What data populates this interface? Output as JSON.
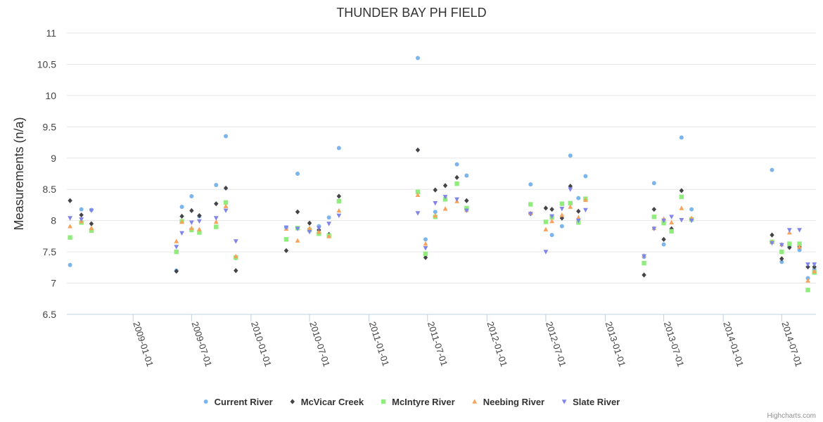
{
  "chart_data": {
    "type": "scatter",
    "title": "THUNDER BAY PH FIELD",
    "xlabel": "",
    "ylabel": "Measurements (n/a)",
    "ylim": [
      6.5,
      11
    ],
    "yticks": [
      "6.5",
      "7",
      "7.5",
      "8",
      "8.5",
      "9",
      "9.5",
      "10",
      "10.5",
      "11"
    ],
    "xlim": [
      "2008-06-10",
      "2014-10-15"
    ],
    "xticks": [
      "2009-01-01",
      "2009-07-01",
      "2010-01-01",
      "2010-07-01",
      "2011-01-01",
      "2011-07-01",
      "2012-01-01",
      "2012-07-01",
      "2013-01-01",
      "2013-07-01",
      "2014-01-01",
      "2014-07-01"
    ],
    "series": [
      {
        "name": "Current River",
        "color": "#7cb5ec",
        "marker": "circle",
        "points": [
          [
            "2008-06-20",
            7.29
          ],
          [
            "2008-07-25",
            8.18
          ],
          [
            "2008-08-25",
            8.17
          ],
          [
            "2009-05-15",
            7.2
          ],
          [
            "2009-06-01",
            8.22
          ],
          [
            "2009-07-01",
            8.39
          ],
          [
            "2009-07-25",
            8.07
          ],
          [
            "2009-09-15",
            8.57
          ],
          [
            "2009-10-15",
            9.35
          ],
          [
            "2009-11-15",
            7.4
          ],
          [
            "2010-04-20",
            7.89
          ],
          [
            "2010-05-25",
            8.75
          ],
          [
            "2010-07-01",
            7.85
          ],
          [
            "2010-07-30",
            7.91
          ],
          [
            "2010-08-30",
            8.05
          ],
          [
            "2010-09-30",
            9.16
          ],
          [
            "2011-06-01",
            10.6
          ],
          [
            "2011-06-25",
            7.7
          ],
          [
            "2011-07-25",
            8.14
          ],
          [
            "2011-08-25",
            8.34
          ],
          [
            "2011-09-30",
            8.9
          ],
          [
            "2011-10-30",
            8.72
          ],
          [
            "2012-05-15",
            8.58
          ],
          [
            "2012-07-01",
            7.98
          ],
          [
            "2012-07-20",
            7.77
          ],
          [
            "2012-08-20",
            7.91
          ],
          [
            "2012-09-15",
            9.04
          ],
          [
            "2012-10-10",
            8.36
          ],
          [
            "2012-11-01",
            8.71
          ],
          [
            "2013-05-01",
            7.42
          ],
          [
            "2013-06-01",
            8.6
          ],
          [
            "2013-07-01",
            7.62
          ],
          [
            "2013-07-25",
            7.84
          ],
          [
            "2013-08-25",
            9.33
          ],
          [
            "2013-09-25",
            8.18
          ],
          [
            "2014-06-01",
            8.81
          ],
          [
            "2014-07-01",
            7.34
          ],
          [
            "2014-07-25",
            7.58
          ],
          [
            "2014-08-25",
            7.53
          ],
          [
            "2014-09-20",
            7.08
          ],
          [
            "2014-10-10",
            7.22
          ]
        ]
      },
      {
        "name": "McVicar Creek",
        "color": "#434348",
        "marker": "diamond",
        "points": [
          [
            "2008-06-20",
            8.32
          ],
          [
            "2008-07-25",
            8.09
          ],
          [
            "2008-08-25",
            7.95
          ],
          [
            "2009-05-15",
            7.19
          ],
          [
            "2009-06-01",
            8.07
          ],
          [
            "2009-07-01",
            8.16
          ],
          [
            "2009-07-25",
            8.08
          ],
          [
            "2009-09-15",
            8.27
          ],
          [
            "2009-10-15",
            8.52
          ],
          [
            "2009-11-15",
            7.2
          ],
          [
            "2010-04-20",
            7.52
          ],
          [
            "2010-05-25",
            8.14
          ],
          [
            "2010-07-01",
            7.96
          ],
          [
            "2010-07-30",
            7.85
          ],
          [
            "2010-08-30",
            7.78
          ],
          [
            "2010-09-30",
            8.39
          ],
          [
            "2011-06-01",
            9.13
          ],
          [
            "2011-06-25",
            7.41
          ],
          [
            "2011-07-25",
            8.49
          ],
          [
            "2011-08-25",
            8.56
          ],
          [
            "2011-09-30",
            8.69
          ],
          [
            "2011-10-30",
            8.32
          ],
          [
            "2012-05-15",
            8.11
          ],
          [
            "2012-07-01",
            8.2
          ],
          [
            "2012-07-20",
            8.18
          ],
          [
            "2012-08-20",
            8.04
          ],
          [
            "2012-09-15",
            8.55
          ],
          [
            "2012-10-10",
            8.15
          ],
          [
            "2012-11-01",
            8.34
          ],
          [
            "2013-05-01",
            7.13
          ],
          [
            "2013-06-01",
            8.18
          ],
          [
            "2013-07-01",
            7.7
          ],
          [
            "2013-07-25",
            7.87
          ],
          [
            "2013-08-25",
            8.48
          ],
          [
            "2013-09-25",
            8.02
          ],
          [
            "2014-06-01",
            7.77
          ],
          [
            "2014-07-01",
            7.39
          ],
          [
            "2014-07-25",
            7.57
          ],
          [
            "2014-08-25",
            7.58
          ],
          [
            "2014-09-20",
            7.26
          ],
          [
            "2014-10-10",
            7.26
          ]
        ]
      },
      {
        "name": "McIntyre River",
        "color": "#90ed7d",
        "marker": "square",
        "points": [
          [
            "2008-06-20",
            7.73
          ],
          [
            "2008-07-25",
            7.97
          ],
          [
            "2008-08-25",
            7.84
          ],
          [
            "2009-05-15",
            7.5
          ],
          [
            "2009-06-01",
            7.99
          ],
          [
            "2009-07-01",
            7.85
          ],
          [
            "2009-07-25",
            7.81
          ],
          [
            "2009-09-15",
            7.9
          ],
          [
            "2009-10-15",
            8.29
          ],
          [
            "2009-11-15",
            7.41
          ],
          [
            "2010-04-20",
            7.7
          ],
          [
            "2010-05-25",
            7.88
          ],
          [
            "2010-07-01",
            7.85
          ],
          [
            "2010-07-30",
            7.79
          ],
          [
            "2010-08-30",
            7.76
          ],
          [
            "2010-09-30",
            8.31
          ],
          [
            "2011-06-01",
            8.46
          ],
          [
            "2011-06-25",
            7.47
          ],
          [
            "2011-07-25",
            8.06
          ],
          [
            "2011-08-25",
            8.34
          ],
          [
            "2011-09-30",
            8.59
          ],
          [
            "2011-10-30",
            8.2
          ],
          [
            "2012-05-15",
            8.26
          ],
          [
            "2012-07-01",
            7.98
          ],
          [
            "2012-07-20",
            8.05
          ],
          [
            "2012-08-20",
            8.27
          ],
          [
            "2012-09-15",
            8.28
          ],
          [
            "2012-10-10",
            7.97
          ],
          [
            "2012-11-01",
            8.35
          ],
          [
            "2013-05-01",
            7.32
          ],
          [
            "2013-06-01",
            8.06
          ],
          [
            "2013-07-01",
            7.96
          ],
          [
            "2013-07-25",
            7.83
          ],
          [
            "2013-08-25",
            8.38
          ],
          [
            "2013-09-25",
            8.02
          ],
          [
            "2014-06-01",
            7.66
          ],
          [
            "2014-07-01",
            7.5
          ],
          [
            "2014-07-25",
            7.63
          ],
          [
            "2014-08-25",
            7.63
          ],
          [
            "2014-09-20",
            6.89
          ],
          [
            "2014-10-10",
            7.17
          ]
        ]
      },
      {
        "name": "Neebing River",
        "color": "#f7a35c",
        "marker": "triangle",
        "points": [
          [
            "2008-06-20",
            7.91
          ],
          [
            "2008-07-25",
            7.99
          ],
          [
            "2008-08-25",
            7.88
          ],
          [
            "2009-05-15",
            7.67
          ],
          [
            "2009-06-01",
            7.98
          ],
          [
            "2009-07-01",
            7.88
          ],
          [
            "2009-07-25",
            7.86
          ],
          [
            "2009-09-15",
            7.98
          ],
          [
            "2009-10-15",
            8.23
          ],
          [
            "2009-11-15",
            7.43
          ],
          [
            "2010-04-20",
            7.87
          ],
          [
            "2010-05-25",
            7.68
          ],
          [
            "2010-07-01",
            7.88
          ],
          [
            "2010-07-30",
            7.82
          ],
          [
            "2010-08-30",
            7.75
          ],
          [
            "2010-09-30",
            8.16
          ],
          [
            "2011-06-01",
            8.41
          ],
          [
            "2011-06-25",
            7.63
          ],
          [
            "2011-07-25",
            8.08
          ],
          [
            "2011-08-25",
            8.19
          ],
          [
            "2011-09-30",
            8.31
          ],
          [
            "2011-10-30",
            8.17
          ],
          [
            "2012-05-15",
            8.12
          ],
          [
            "2012-07-01",
            7.86
          ],
          [
            "2012-07-20",
            7.99
          ],
          [
            "2012-08-20",
            8.09
          ],
          [
            "2012-09-15",
            8.22
          ],
          [
            "2012-10-10",
            8.05
          ],
          [
            "2012-11-01",
            8.33
          ],
          [
            "2013-05-01",
            7.44
          ],
          [
            "2013-06-01",
            7.88
          ],
          [
            "2013-07-01",
            8.03
          ],
          [
            "2013-07-25",
            7.97
          ],
          [
            "2013-08-25",
            8.2
          ],
          [
            "2013-09-25",
            8.04
          ],
          [
            "2014-06-01",
            7.66
          ],
          [
            "2014-07-01",
            7.62
          ],
          [
            "2014-07-25",
            7.81
          ],
          [
            "2014-08-25",
            7.58
          ],
          [
            "2014-09-20",
            7.04
          ],
          [
            "2014-10-10",
            7.19
          ]
        ]
      },
      {
        "name": "Slate River",
        "color": "#8085e9",
        "marker": "triangle-down",
        "points": [
          [
            "2008-06-20",
            8.04
          ],
          [
            "2008-07-25",
            8.02
          ],
          [
            "2008-08-25",
            8.16
          ],
          [
            "2009-05-15",
            7.58
          ],
          [
            "2009-06-01",
            7.8
          ],
          [
            "2009-07-01",
            7.97
          ],
          [
            "2009-07-25",
            7.99
          ],
          [
            "2009-09-15",
            8.04
          ],
          [
            "2009-10-15",
            8.16
          ],
          [
            "2009-11-15",
            7.67
          ],
          [
            "2010-04-20",
            7.89
          ],
          [
            "2010-05-25",
            7.87
          ],
          [
            "2010-07-01",
            7.82
          ],
          [
            "2010-07-30",
            7.88
          ],
          [
            "2010-08-30",
            7.95
          ],
          [
            "2010-09-30",
            8.08
          ],
          [
            "2011-06-01",
            8.12
          ],
          [
            "2011-06-25",
            7.56
          ],
          [
            "2011-07-25",
            8.28
          ],
          [
            "2011-08-25",
            8.38
          ],
          [
            "2011-09-30",
            8.34
          ],
          [
            "2011-10-30",
            8.16
          ],
          [
            "2012-05-15",
            8.11
          ],
          [
            "2012-07-01",
            7.5
          ],
          [
            "2012-07-20",
            8.07
          ],
          [
            "2012-08-20",
            8.19
          ],
          [
            "2012-09-15",
            8.5
          ],
          [
            "2012-10-10",
            8.0
          ],
          [
            "2012-11-01",
            8.17
          ],
          [
            "2013-05-01",
            7.43
          ],
          [
            "2013-06-01",
            7.87
          ],
          [
            "2013-07-01",
            8.0
          ],
          [
            "2013-07-25",
            8.06
          ],
          [
            "2013-08-25",
            8.01
          ],
          [
            "2013-09-25",
            8.0
          ],
          [
            "2014-06-01",
            7.64
          ],
          [
            "2014-07-01",
            7.61
          ],
          [
            "2014-07-25",
            7.85
          ],
          [
            "2014-08-25",
            7.85
          ],
          [
            "2014-09-20",
            7.3
          ],
          [
            "2014-10-10",
            7.3
          ]
        ]
      }
    ],
    "legend_position": "bottom-center",
    "credits": "Highcharts.com"
  }
}
